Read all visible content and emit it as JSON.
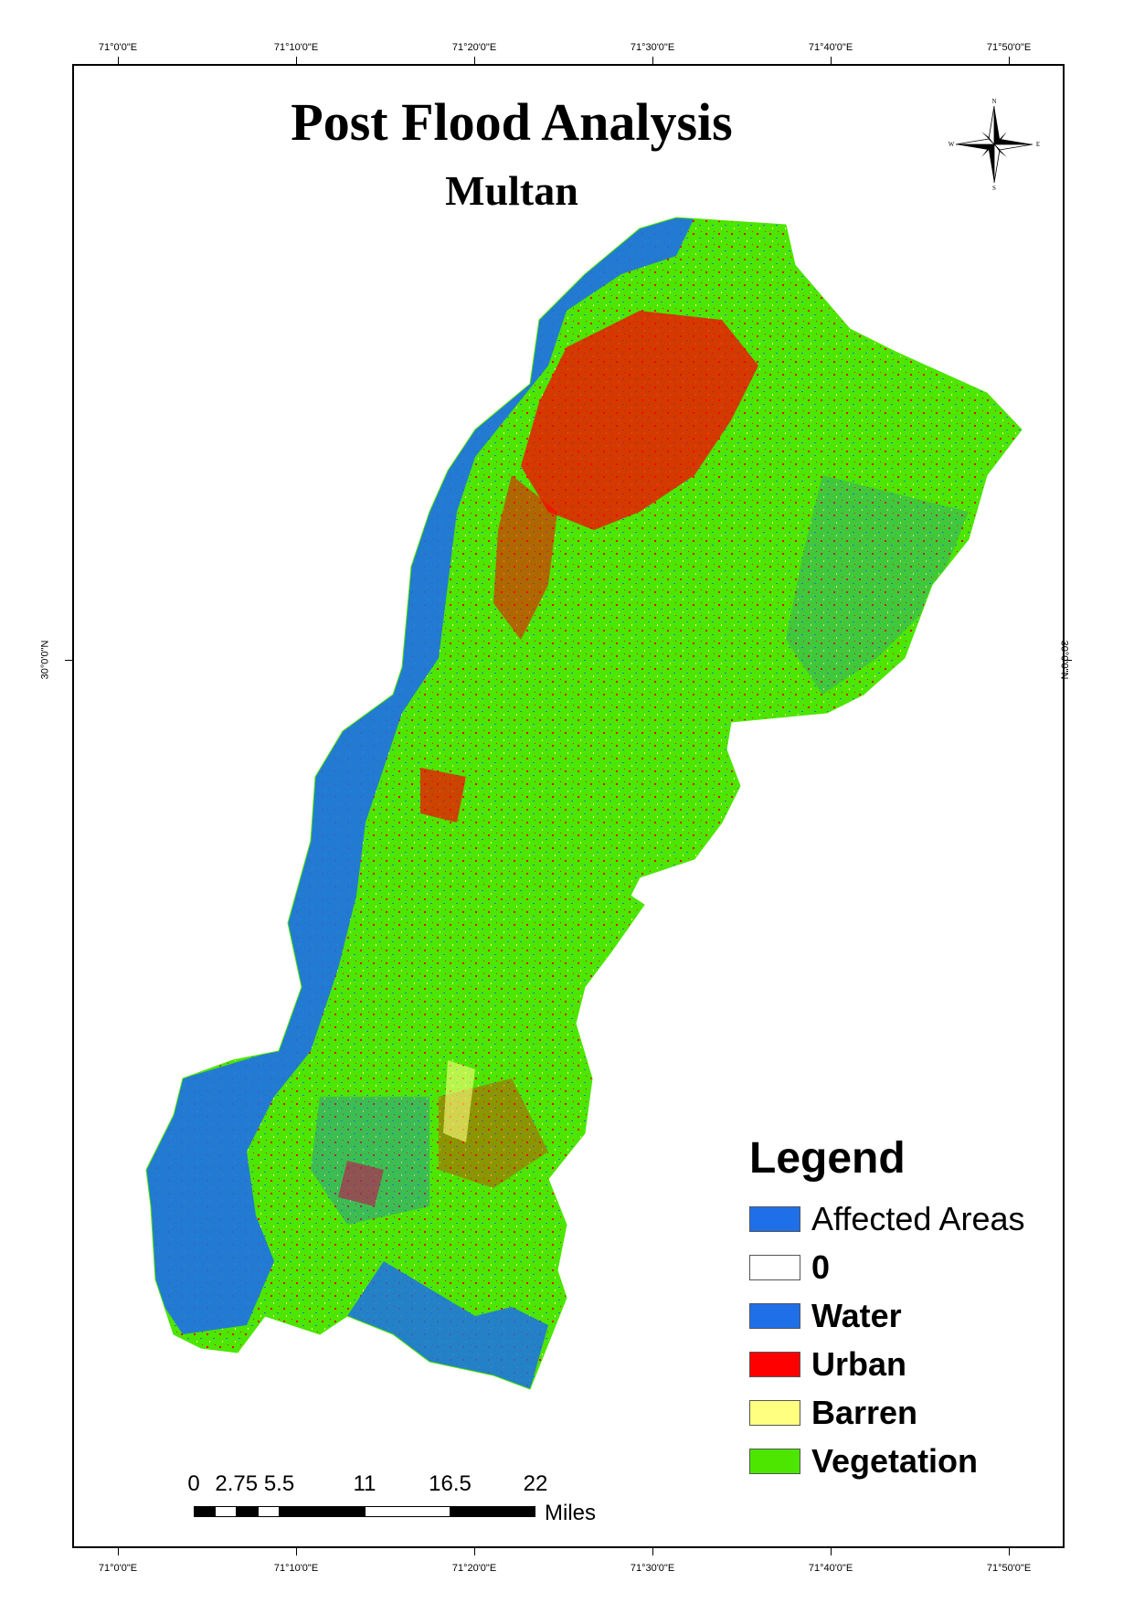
{
  "map": {
    "title": "Post Flood Analysis",
    "subtitle": "Multan"
  },
  "graticule": {
    "longitudes": [
      "71°0'0\"E",
      "71°10'0\"E",
      "71°20'0\"E",
      "71°30'0\"E",
      "71°40'0\"E",
      "71°50'0\"E"
    ],
    "latitudes": [
      "30°0'0\"N"
    ]
  },
  "north_arrow": {
    "n": "N",
    "s": "S",
    "e": "E",
    "w": "W"
  },
  "legend": {
    "title": "Legend",
    "items": [
      {
        "label": "Affected Areas",
        "color": "#1f6fe8",
        "bold": false
      },
      {
        "label": "0",
        "color": "#ffffff",
        "bold": true
      },
      {
        "label": "Water",
        "color": "#1f6fe8",
        "bold": true
      },
      {
        "label": "Urban",
        "color": "#ff0000",
        "bold": true
      },
      {
        "label": "Barren",
        "color": "#ffff80",
        "bold": true
      },
      {
        "label": "Vegetation",
        "color": "#4ce600",
        "bold": true
      }
    ]
  },
  "scale_bar": {
    "labels": [
      "0",
      "2.75",
      "5.5",
      "11",
      "16.5",
      "22"
    ],
    "units": "Miles"
  },
  "colors": {
    "water": "#1f6fe8",
    "urban": "#ff0000",
    "vegetation": "#4ce600",
    "barren": "#ffff80"
  }
}
